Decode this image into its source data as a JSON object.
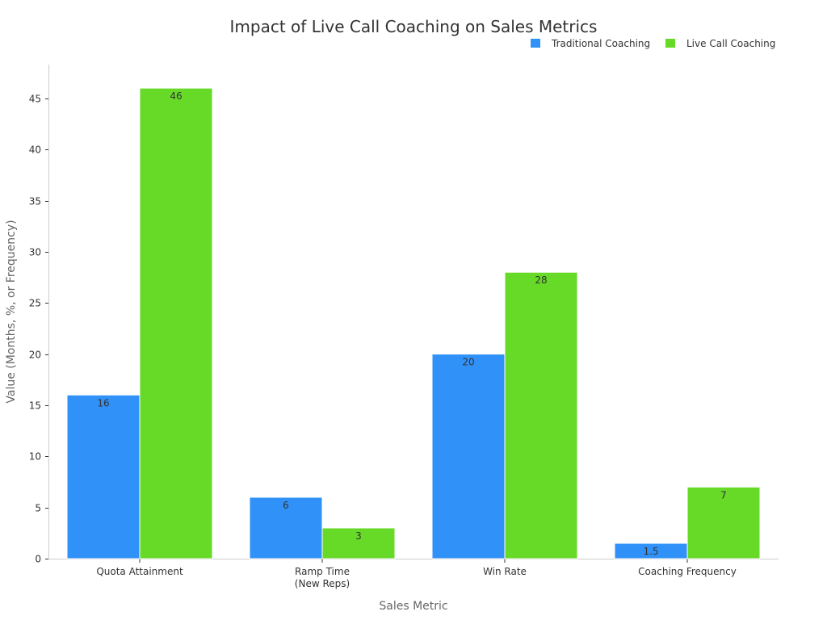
{
  "chart_data": {
    "type": "bar",
    "title": "Impact of Live Call Coaching on Sales Metrics",
    "xlabel": "Sales Metric",
    "ylabel": "Value (Months, %, or Frequency)",
    "categories": [
      [
        "Quota Attainment"
      ],
      [
        "Ramp Time",
        "(New Reps)"
      ],
      [
        "Win Rate"
      ],
      [
        "Coaching Frequency"
      ]
    ],
    "series": [
      {
        "name": "Traditional Coaching",
        "color": "#3092f8",
        "values": [
          16,
          6,
          20,
          1.5
        ],
        "labels": [
          "16",
          "6",
          "20",
          "1.5"
        ]
      },
      {
        "name": "Live Call Coaching",
        "color": "#66da26",
        "values": [
          46,
          3,
          28,
          7
        ],
        "labels": [
          "46",
          "3",
          "28",
          "7"
        ]
      }
    ],
    "ylim": [
      0,
      48.3
    ],
    "yticks": [
      0,
      5,
      10,
      15,
      20,
      25,
      30,
      35,
      40,
      45
    ],
    "grid": false,
    "legend_position": "top-right"
  }
}
